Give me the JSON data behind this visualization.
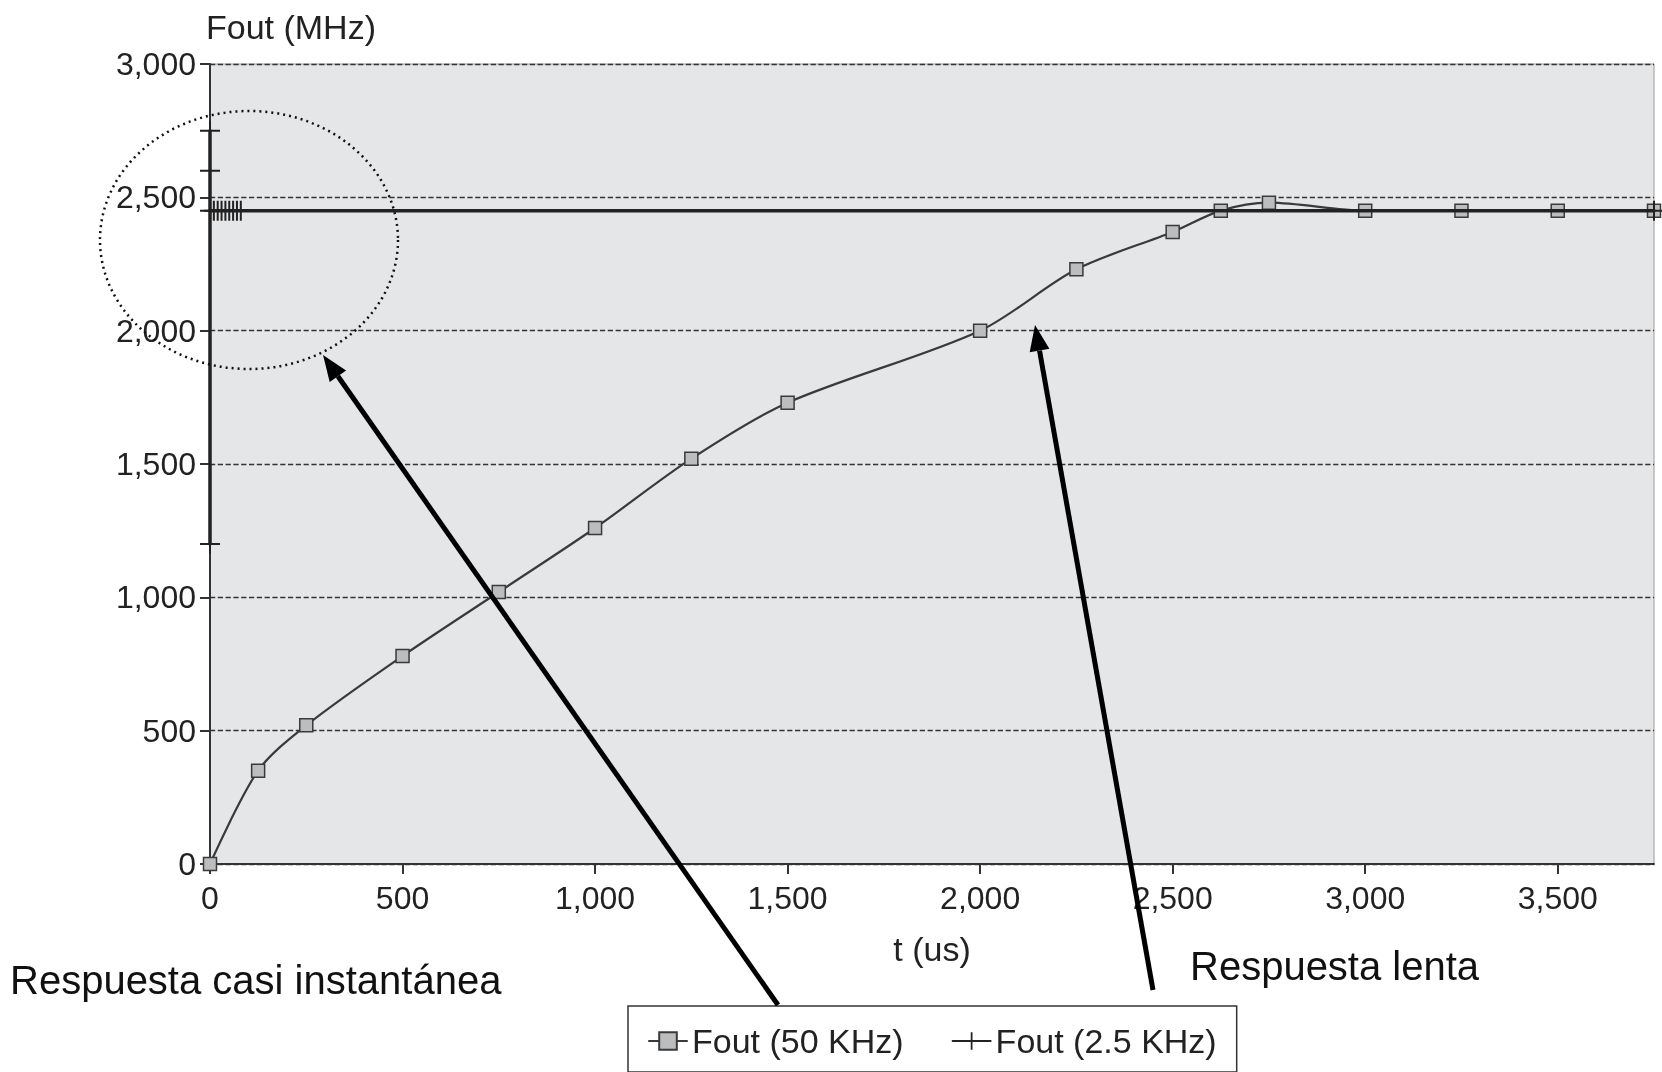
{
  "chart_data": {
    "type": "line",
    "xlabel": "t (us)",
    "ylabel": "Fout (MHz)",
    "xlim": [
      0,
      3750
    ],
    "ylim": [
      0,
      3000
    ],
    "xticks": [
      0,
      500,
      {
        "value": 1000,
        "label": "1,000"
      },
      {
        "value": 1500,
        "label": "1,500"
      },
      {
        "value": 2000,
        "label": "2,000"
      },
      {
        "value": 2500,
        "label": "2,500"
      },
      {
        "value": 3000,
        "label": "3,000"
      },
      {
        "value": 3500,
        "label": "3,500"
      }
    ],
    "yticks": [
      0,
      500,
      {
        "value": 1000,
        "label": "1,000"
      },
      {
        "value": 1500,
        "label": "1,500"
      },
      {
        "value": 2000,
        "label": "2,000"
      },
      {
        "value": 2500,
        "label": "2,500"
      },
      {
        "value": 3000,
        "label": "3,000"
      }
    ],
    "grid": "y",
    "legend": "bottom",
    "series": [
      {
        "name": "Fout (50 KHz)",
        "color": "#3a3a3a",
        "marker": "square",
        "x": [
          0,
          125,
          250,
          500,
          750,
          1000,
          1250,
          1500,
          2000,
          2250,
          2500,
          2625,
          2750,
          3000,
          3250,
          3500,
          3750
        ],
        "values": [
          0,
          350,
          520,
          780,
          1020,
          1260,
          1520,
          1730,
          2000,
          2230,
          2370,
          2450,
          2480,
          2450,
          2450,
          2450,
          2450
        ]
      },
      {
        "name": "Fout (2.5 KHz)",
        "color": "#222222",
        "marker": "cross",
        "x": [
          0,
          0,
          0,
          0,
          10,
          20,
          30,
          40,
          50,
          60,
          70,
          80,
          3750
        ],
        "values": [
          1200,
          2750,
          2600,
          2450,
          2450,
          2450,
          2450,
          2450,
          2450,
          2450,
          2450,
          2450,
          2450
        ]
      }
    ],
    "annotations": [
      "Respuesta casi instantánea",
      "Respuesta lenta"
    ]
  }
}
